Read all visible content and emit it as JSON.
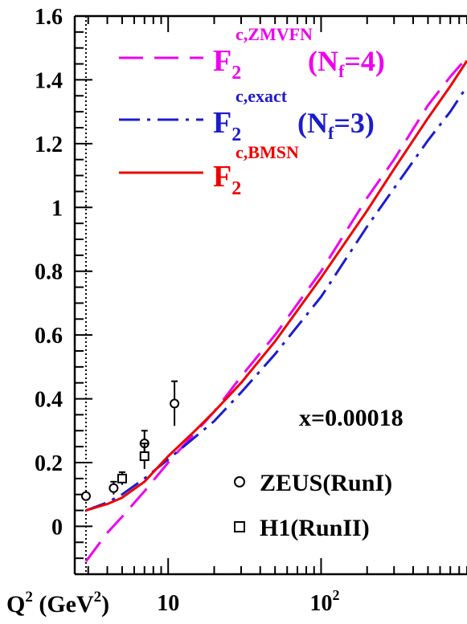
{
  "chart_data": {
    "type": "line",
    "x_scale": "log",
    "xlim": [
      2.45,
      900
    ],
    "ylim": [
      -0.15,
      1.6
    ],
    "y_ticks": [
      {
        "v": 0,
        "label": "0"
      },
      {
        "v": 0.2,
        "label": "0.2"
      },
      {
        "v": 0.4,
        "label": "0.4"
      },
      {
        "v": 0.6,
        "label": "0.6"
      },
      {
        "v": 0.8,
        "label": "0.8"
      },
      {
        "v": 1.0,
        "label": "1"
      },
      {
        "v": 1.2,
        "label": "1.2"
      },
      {
        "v": 1.4,
        "label": "1.4"
      },
      {
        "v": 1.6,
        "label": "1.6"
      }
    ],
    "x_ticks": [
      {
        "v": 10,
        "label": "10",
        "sup": ""
      },
      {
        "v": 100,
        "label": "10",
        "sup": "2"
      }
    ],
    "threshold_q2": 2.9,
    "xlabel": {
      "main": "Q",
      "sup1": "2",
      "unit": " (GeV",
      "sup2": "2",
      "close": ")"
    },
    "annotation": "x=0.00018",
    "series": [
      {
        "key": "zmvfn",
        "legend": {
          "main": "F",
          "sub": "2",
          "sup": "c,ZMVFN",
          "suffix": "(N",
          "suffix_sub": "f",
          "suffix_end": "=4)"
        },
        "color": "#ee00ee",
        "style": "dashed",
        "x": [
          2.9,
          4,
          5,
          7,
          10,
          20,
          30,
          50,
          100,
          200,
          300,
          500,
          700,
          900
        ],
        "y": [
          -0.11,
          -0.02,
          0.03,
          0.11,
          0.2,
          0.36,
          0.47,
          0.6,
          0.8,
          1.03,
          1.15,
          1.32,
          1.41,
          1.47
        ]
      },
      {
        "key": "exact",
        "legend": {
          "main": "F",
          "sub": "2",
          "sup": "c,exact",
          "suffix": "(N",
          "suffix_sub": "f",
          "suffix_end": "=3)"
        },
        "color": "#1c1cce",
        "style": "dashdot",
        "x": [
          2.9,
          4,
          5,
          7,
          10,
          20,
          30,
          50,
          100,
          200,
          300,
          500,
          700,
          900
        ],
        "y": [
          0.05,
          0.075,
          0.1,
          0.15,
          0.21,
          0.33,
          0.42,
          0.54,
          0.72,
          0.94,
          1.06,
          1.21,
          1.3,
          1.38
        ]
      },
      {
        "key": "bmsn",
        "legend": {
          "main": "F",
          "sub": "2",
          "sup": "c,BMSN",
          "suffix": "",
          "suffix_sub": "",
          "suffix_end": ""
        },
        "color": "#ee0000",
        "style": "solid",
        "x": [
          2.9,
          3.5,
          4,
          5,
          7,
          10,
          15,
          20,
          30,
          50,
          100,
          200,
          300,
          500,
          700,
          900
        ],
        "y": [
          0.05,
          0.062,
          0.07,
          0.09,
          0.14,
          0.22,
          0.3,
          0.36,
          0.45,
          0.58,
          0.78,
          0.99,
          1.12,
          1.28,
          1.38,
          1.46
        ]
      }
    ],
    "data_sets": [
      {
        "name": "ZEUS(RunI)",
        "marker": "circle",
        "points": [
          {
            "x": 2.9,
            "y": 0.095,
            "err": 0.008
          },
          {
            "x": 4.4,
            "y": 0.12,
            "err": 0.02
          },
          {
            "x": 7.0,
            "y": 0.26,
            "err": 0.04
          },
          {
            "x": 11.0,
            "y": 0.385,
            "err": 0.07
          }
        ]
      },
      {
        "name": "H1(RunII)",
        "marker": "square",
        "points": [
          {
            "x": 5.0,
            "y": 0.15,
            "err": 0.02
          },
          {
            "x": 7.0,
            "y": 0.22,
            "err": 0.04
          }
        ]
      }
    ]
  }
}
